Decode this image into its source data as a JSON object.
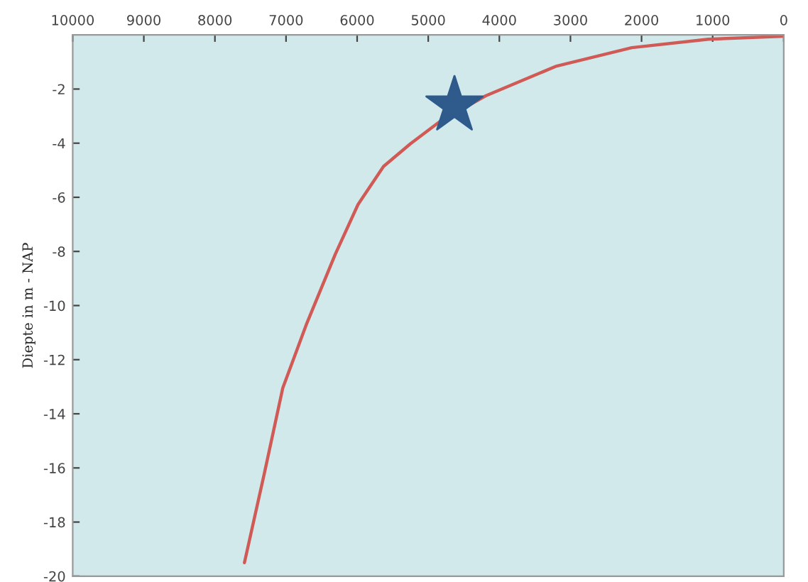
{
  "chart_data": {
    "type": "line",
    "ylabel": "Diepte in m - NAP",
    "xlim": [
      10000,
      0
    ],
    "ylim": [
      -20,
      0
    ],
    "xticks": [
      10000,
      9000,
      8000,
      7000,
      6000,
      5000,
      4000,
      3000,
      2000,
      1000,
      0
    ],
    "yticks": [
      -2,
      -4,
      -6,
      -8,
      -10,
      -12,
      -14,
      -16,
      -18,
      -20
    ],
    "grid": false,
    "legend": false,
    "series": [
      {
        "color": "#d05a55",
        "marker": "none",
        "line_style": "solid",
        "x": [
          7585,
          7305,
          7046,
          6707,
          6307,
          5988,
          5629,
          5250,
          4830,
          4192,
          3194,
          2136,
          1058,
          0
        ],
        "values": [
          -19.5,
          -16.2,
          -13.05,
          -10.65,
          -8.1,
          -6.27,
          -4.86,
          -4.02,
          -3.19,
          -2.25,
          -1.15,
          -0.47,
          -0.16,
          -0.05
        ]
      },
      {
        "type": "scatter",
        "color": "#2e5a8c",
        "marker": "star",
        "x": [
          4631
        ],
        "values": [
          -2.61
        ]
      }
    ]
  }
}
